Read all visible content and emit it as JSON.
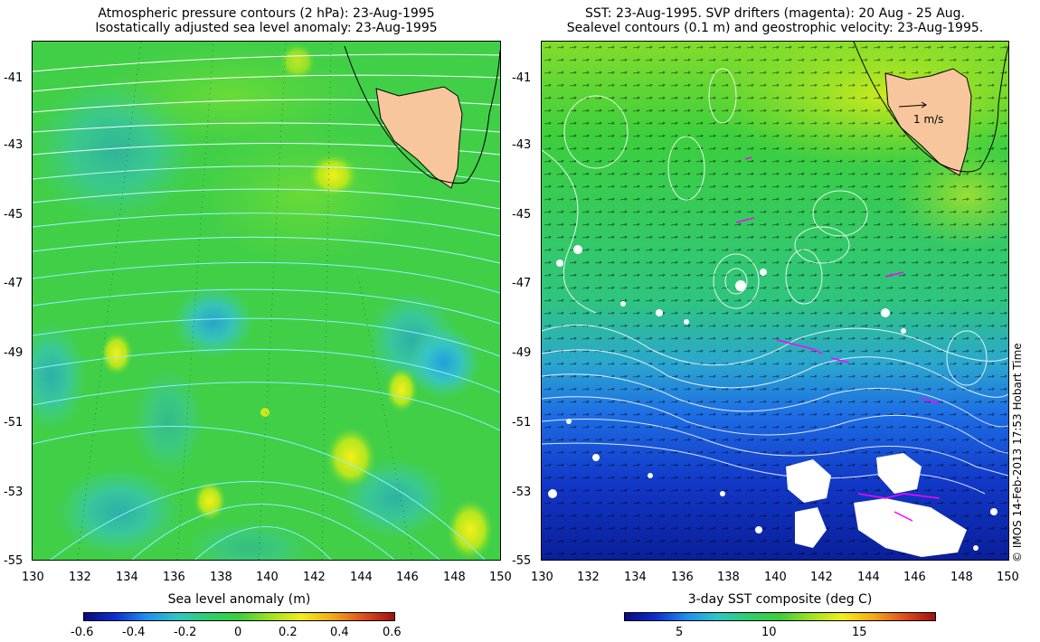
{
  "left_panel": {
    "title_line1": "Atmospheric pressure contours (2 hPa): 23-Aug-1995",
    "title_line2": "Isostatically adjusted sea level anomaly: 23-Aug-1995",
    "colorbar_title": "Sea level anomaly (m)",
    "colorbar_ticks": [
      "-0.6",
      "-0.4",
      "-0.2",
      "0",
      "0.2",
      "0.4",
      "0.6"
    ],
    "colors": {
      "background": "#3ccf3c",
      "contours": "#8fefff",
      "land": "#f7c69c"
    }
  },
  "right_panel": {
    "title_line1": "SST: 23-Aug-1995. SVP drifters (magenta): 20 Aug - 25 Aug.",
    "title_line2": "Sealevel contours (0.1 m) and geostrophic velocity: 23-Aug-1995.",
    "colorbar_title": "3-day SST composite (deg C)",
    "colorbar_ticks": [
      "5",
      "10",
      "15"
    ],
    "scale_label": "1 m/s",
    "colors": {
      "drifters": "#ff00ff",
      "contours": "#ffffff",
      "land": "#f7c69c"
    }
  },
  "axes": {
    "lat_labels": [
      "-41",
      "-43",
      "-45",
      "-47",
      "-49",
      "-51",
      "-53",
      "-55"
    ],
    "lon_labels": [
      "130",
      "132",
      "134",
      "136",
      "138",
      "140",
      "142",
      "144",
      "146",
      "148",
      "150"
    ]
  },
  "copyright": "© IMOS 14-Feb-2013 17:53 Hobart Time"
}
